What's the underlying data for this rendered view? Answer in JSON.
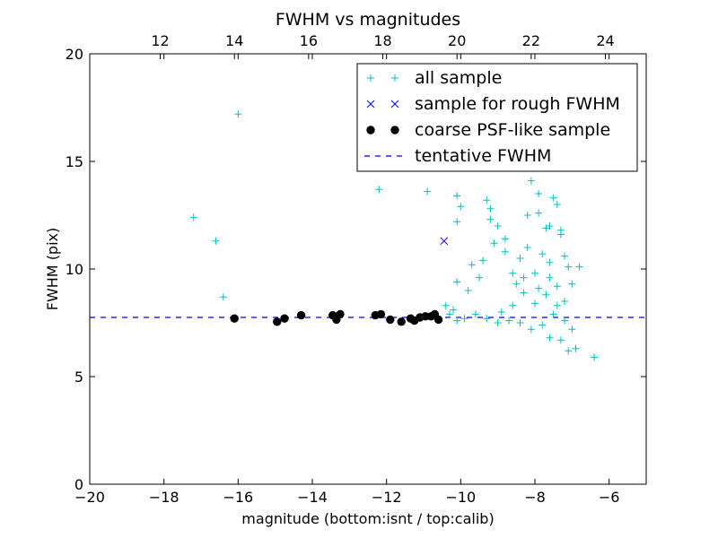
{
  "chart_data": {
    "type": "scatter",
    "title": "FWHM vs magnitudes",
    "xlabel": "magnitude (bottom:isnt / top:calib)",
    "ylabel": "FWHM (pix)",
    "xlim": [
      -20,
      -5
    ],
    "ylim": [
      0,
      20
    ],
    "x_ticks": [
      -20,
      -18,
      -16,
      -14,
      -12,
      -10,
      -8,
      -6
    ],
    "y_ticks": [
      0,
      5,
      10,
      15,
      20
    ],
    "top_axis": {
      "offset_from_bottom": 30.1,
      "ticks": [
        12,
        14,
        16,
        18,
        20,
        22,
        24
      ]
    },
    "grid": false,
    "legend_position": "top-right",
    "reference_lines": [
      {
        "name": "tentative FWHM",
        "orientation": "horizontal",
        "y": 7.75,
        "color": "#0000ff",
        "style": "dashed"
      }
    ],
    "series": [
      {
        "name": "all sample",
        "marker": "plus",
        "color": "#00bfbf",
        "points": [
          [
            -16.0,
            17.2
          ],
          [
            -17.2,
            12.4
          ],
          [
            -16.6,
            11.3
          ],
          [
            -16.4,
            8.7
          ],
          [
            -12.2,
            13.7
          ],
          [
            -10.9,
            13.6
          ],
          [
            -10.3,
            15.5
          ],
          [
            -10.3,
            15.8
          ],
          [
            -10.1,
            13.4
          ],
          [
            -10.0,
            12.9
          ],
          [
            -10.1,
            12.2
          ],
          [
            -9.6,
            14.8
          ],
          [
            -9.3,
            13.2
          ],
          [
            -9.2,
            12.8
          ],
          [
            -9.0,
            12.0
          ],
          [
            -8.8,
            11.4
          ],
          [
            -9.1,
            11.2
          ],
          [
            -9.4,
            10.4
          ],
          [
            -9.7,
            10.2
          ],
          [
            -9.5,
            9.6
          ],
          [
            -10.1,
            9.4
          ],
          [
            -9.8,
            9.0
          ],
          [
            -10.4,
            8.3
          ],
          [
            -8.6,
            9.8
          ],
          [
            -8.4,
            10.5
          ],
          [
            -8.2,
            11.0
          ],
          [
            -8.0,
            9.8
          ],
          [
            -7.8,
            10.7
          ],
          [
            -7.6,
            12.0
          ],
          [
            -7.4,
            13.0
          ],
          [
            -7.9,
            13.5
          ],
          [
            -8.1,
            14.1
          ],
          [
            -7.7,
            14.7
          ],
          [
            -7.5,
            13.3
          ],
          [
            -7.3,
            11.8
          ],
          [
            -7.2,
            10.6
          ],
          [
            -7.6,
            9.6
          ],
          [
            -7.9,
            9.1
          ],
          [
            -8.3,
            8.9
          ],
          [
            -8.6,
            8.3
          ],
          [
            -8.9,
            8.0
          ],
          [
            -9.3,
            7.7
          ],
          [
            -9.6,
            7.9
          ],
          [
            -8.0,
            8.4
          ],
          [
            -7.7,
            8.8
          ],
          [
            -7.4,
            9.2
          ],
          [
            -7.2,
            8.5
          ],
          [
            -7.5,
            7.9
          ],
          [
            -7.8,
            7.4
          ],
          [
            -8.1,
            7.2
          ],
          [
            -7.6,
            6.8
          ],
          [
            -7.3,
            6.7
          ],
          [
            -7.1,
            6.2
          ],
          [
            -6.9,
            6.3
          ],
          [
            -6.4,
            5.9
          ],
          [
            -7.0,
            7.2
          ],
          [
            -7.2,
            7.6
          ],
          [
            -7.4,
            8.3
          ],
          [
            -8.4,
            7.5
          ],
          [
            -8.7,
            7.6
          ],
          [
            -9.0,
            7.5
          ],
          [
            -9.9,
            7.7
          ],
          [
            -10.1,
            7.6
          ],
          [
            -10.3,
            7.9
          ],
          [
            -10.2,
            8.1
          ],
          [
            -8.5,
            9.3
          ],
          [
            -8.2,
            12.5
          ],
          [
            -7.9,
            12.6
          ],
          [
            -7.7,
            11.9
          ],
          [
            -7.3,
            11.6
          ],
          [
            -7.1,
            10.1
          ],
          [
            -6.8,
            10.1
          ],
          [
            -7.0,
            9.3
          ],
          [
            -8.8,
            10.8
          ],
          [
            -9.2,
            12.3
          ],
          [
            -8.6,
            15.4
          ],
          [
            -8.3,
            17.8
          ],
          [
            -8.0,
            16.2
          ],
          [
            -8.3,
            9.6
          ],
          [
            -7.6,
            10.3
          ]
        ]
      },
      {
        "name": "sample for rough FWHM",
        "marker": "x",
        "color": "#0000ff",
        "points": [
          [
            -10.45,
            11.3
          ]
        ]
      },
      {
        "name": "coarse PSF-like sample",
        "marker": "circle",
        "color": "#000000",
        "points": [
          [
            -16.1,
            7.7
          ],
          [
            -14.95,
            7.55
          ],
          [
            -14.75,
            7.7
          ],
          [
            -14.3,
            7.85
          ],
          [
            -13.45,
            7.85
          ],
          [
            -13.35,
            7.65
          ],
          [
            -13.25,
            7.9
          ],
          [
            -12.3,
            7.85
          ],
          [
            -12.15,
            7.9
          ],
          [
            -11.9,
            7.65
          ],
          [
            -11.6,
            7.55
          ],
          [
            -11.25,
            7.6
          ],
          [
            -11.1,
            7.75
          ],
          [
            -10.95,
            7.8
          ],
          [
            -10.8,
            7.8
          ],
          [
            -10.7,
            7.9
          ],
          [
            -10.6,
            7.65
          ],
          [
            -11.35,
            7.7
          ]
        ]
      }
    ]
  }
}
